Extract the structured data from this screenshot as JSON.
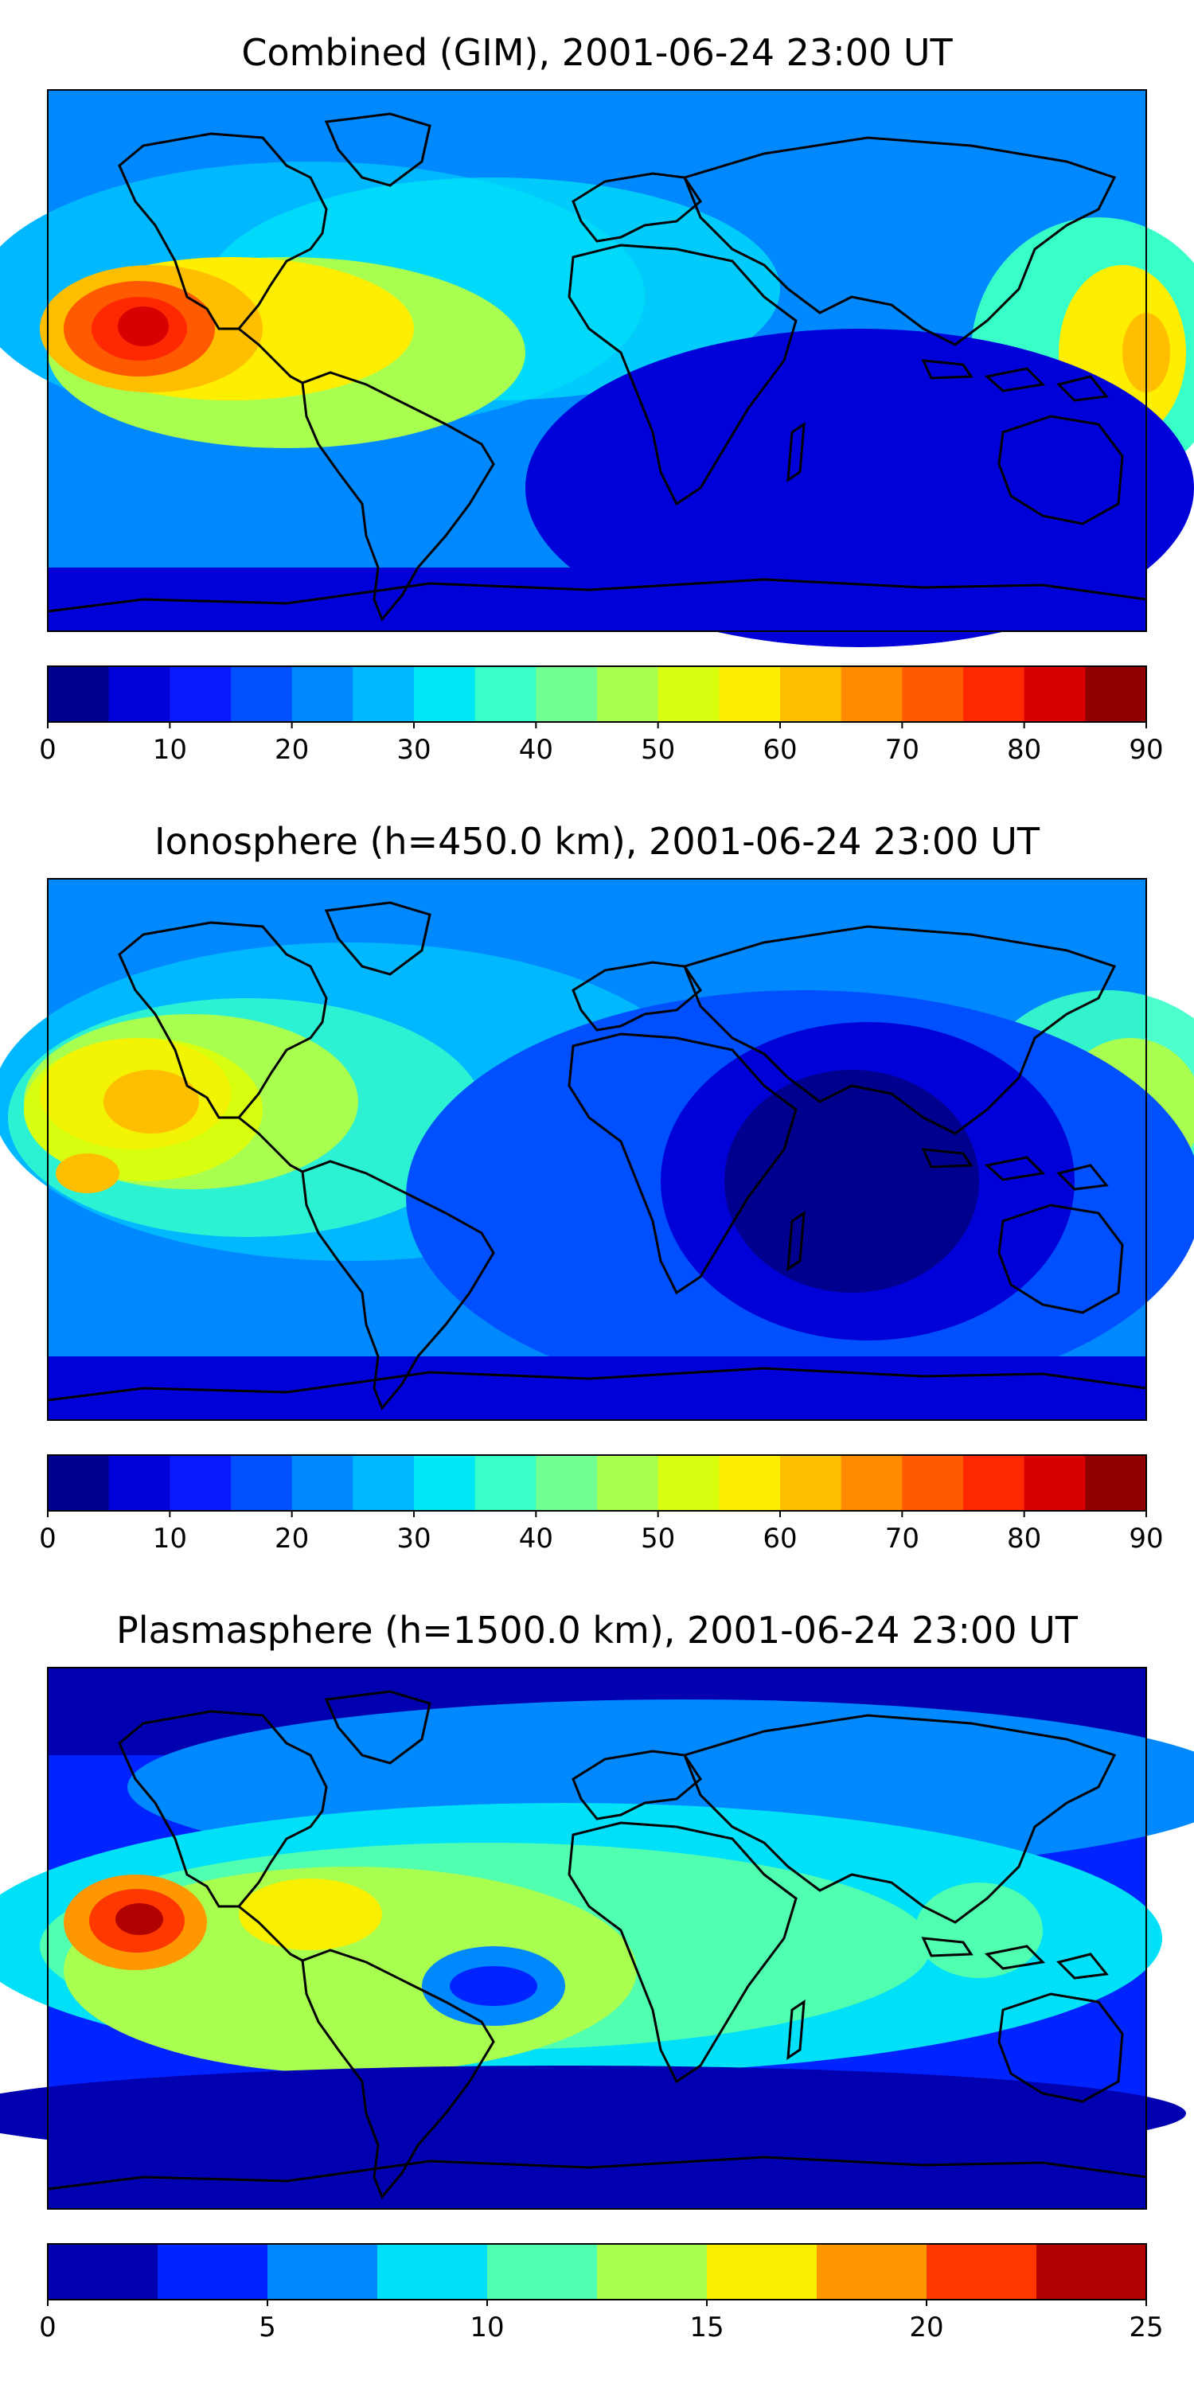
{
  "panels": [
    {
      "title": "Combined (GIM), 2001-06-24 23:00 UT",
      "colorbar": {
        "min": 0,
        "max": 90,
        "step": 5,
        "ticks": [
          "0",
          "10",
          "20",
          "30",
          "40",
          "50",
          "60",
          "70",
          "80",
          "90"
        ],
        "colors": [
          "#00008f",
          "#0000d8",
          "#0a1aff",
          "#0050ff",
          "#0088ff",
          "#00b8ff",
          "#00e8f8",
          "#38ffc8",
          "#70ff90",
          "#a8ff50",
          "#d8ff10",
          "#ffee00",
          "#ffbe00",
          "#ff8c00",
          "#ff5a00",
          "#ff2800",
          "#d80000",
          "#900000"
        ]
      },
      "features": [
        {
          "kind": "hotspot",
          "lon": -150,
          "lat": 10,
          "level": 85
        },
        {
          "kind": "high",
          "lon": 165,
          "lat": 5,
          "level": 65
        },
        {
          "kind": "low",
          "lon": 70,
          "lat": -20,
          "level": 8
        }
      ]
    },
    {
      "title": "Ionosphere  (h=450.0 km), 2001-06-24 23:00 UT",
      "colorbar": {
        "min": 0,
        "max": 90,
        "step": 5,
        "ticks": [
          "0",
          "10",
          "20",
          "30",
          "40",
          "50",
          "60",
          "70",
          "80",
          "90"
        ],
        "colors": [
          "#00008f",
          "#0000d8",
          "#0a1aff",
          "#0050ff",
          "#0088ff",
          "#00b8ff",
          "#00e8f8",
          "#38ffc8",
          "#70ff90",
          "#a8ff50",
          "#d8ff10",
          "#ffee00",
          "#ffbe00",
          "#ff8c00",
          "#ff5a00",
          "#ff2800",
          "#d80000",
          "#900000"
        ]
      },
      "features": [
        {
          "kind": "high",
          "lon": -145,
          "lat": 15,
          "level": 62
        },
        {
          "kind": "high",
          "lon": -175,
          "lat": -5,
          "level": 62
        },
        {
          "kind": "low",
          "lon": 70,
          "lat": -15,
          "level": 4
        }
      ]
    },
    {
      "title": "Plasmasphere (h=1500.0 km), 2001-06-24 23:00 UT",
      "colorbar": {
        "min": 0,
        "max": 25,
        "step": 2.5,
        "ticks": [
          "0",
          "5",
          "10",
          "15",
          "20",
          "25"
        ],
        "colors": [
          "#0000b0",
          "#0024ff",
          "#0088ff",
          "#00e0f8",
          "#50ffb0",
          "#a8ff50",
          "#f8f000",
          "#ff9800",
          "#ff3800",
          "#b00000"
        ]
      },
      "features": [
        {
          "kind": "hotspot",
          "lon": -160,
          "lat": -5,
          "level": 23
        },
        {
          "kind": "high",
          "lon": -95,
          "lat": -15,
          "level": 16
        },
        {
          "kind": "low",
          "lon": -45,
          "lat": -25,
          "level": 5
        }
      ]
    }
  ],
  "coastline_color": "#000000"
}
